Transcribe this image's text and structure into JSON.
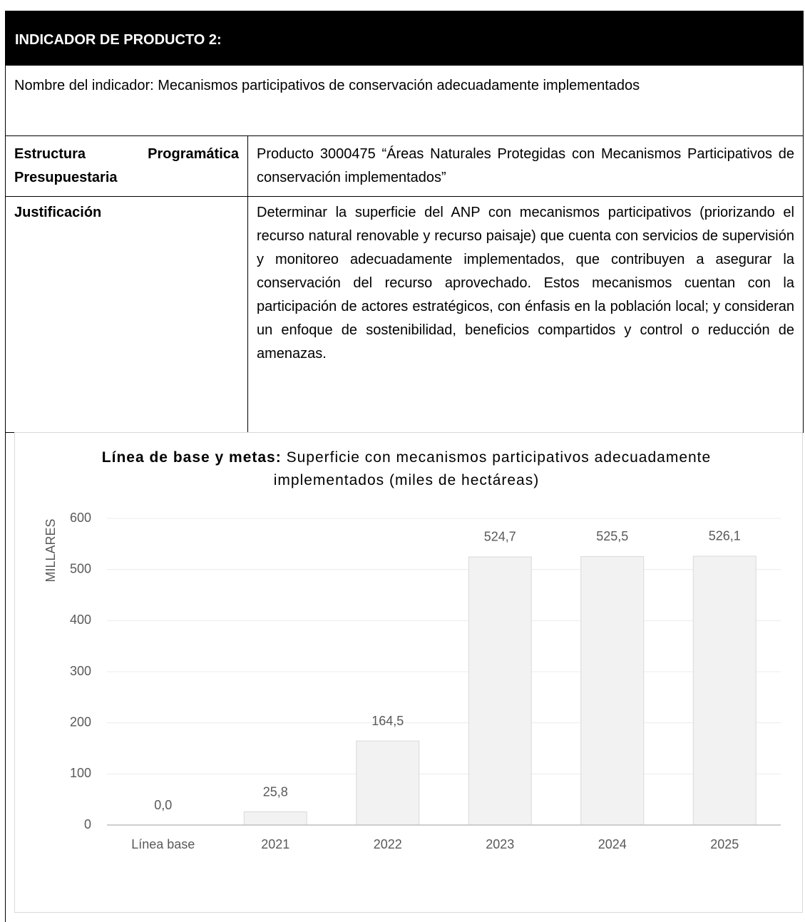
{
  "header": {
    "title": "INDICADOR DE PRODUCTO 2:"
  },
  "indicator_name": "Nombre del indicador: Mecanismos participativos de conservación adecuadamente implementados",
  "table": {
    "rows": [
      [
        "Estructura Programática Presupuestaria",
        "Producto 3000475 “Áreas Naturales Protegidas con Mecanismos Participativos de conservación implementados”"
      ],
      [
        "Justificación",
        "Determinar la superficie del ANP con mecanismos participativos (priorizando el recurso natural renovable y recurso paisaje) que cuenta con servicios de supervisión y monitoreo adecuadamente implementados, que contribuyen a asegurar la conservación del recurso aprovechado. Estos mecanismos cuentan con la participación de actores estratégicos, con énfasis en la población local; y consideran un enfoque de sostenibilidad, beneficios compartidos y control o reducción de amenazas."
      ]
    ]
  },
  "chart_data": {
    "type": "bar",
    "title": "Línea de base y metas:",
    "subtitle": "Superficie con mecanismos participativos adecuadamente implementados (miles de hectáreas)",
    "y_label": "MILLARES",
    "categories": [
      "Línea base",
      "2021",
      "2022",
      "2023",
      "2024",
      "2025"
    ],
    "values": [
      0,
      25.8,
      164.5,
      524.7,
      525.5,
      526.1
    ],
    "value_labels": [
      "0,0",
      "25,8",
      "164,5",
      "524,7",
      "525,5",
      "526,1"
    ],
    "color": "#f2f2f2",
    "ylim": [
      0,
      600
    ],
    "yticks": [
      0,
      100,
      200,
      300,
      400,
      500,
      600
    ],
    "grid": true
  }
}
